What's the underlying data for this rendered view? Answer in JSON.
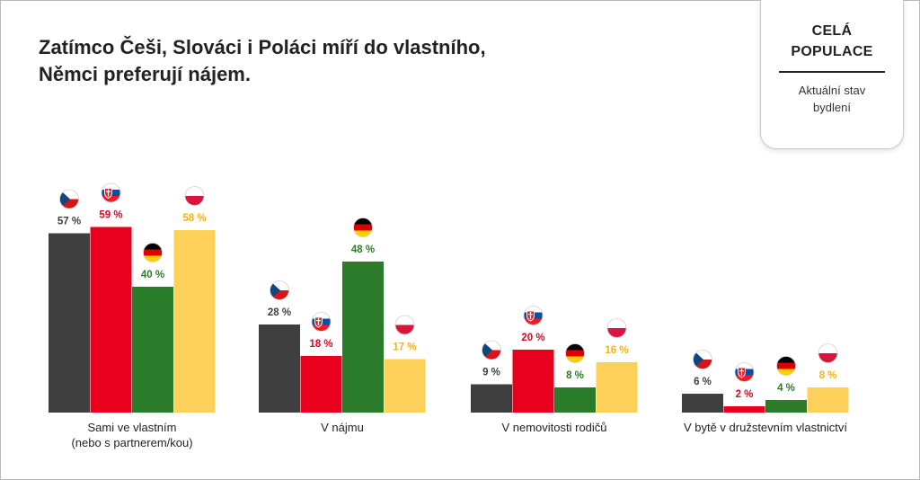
{
  "header": {
    "title_line1": "Zatímco Češi, Slováci i Poláci míří do vlastního,",
    "title_line2": "Němci preferují nájem."
  },
  "badge": {
    "title_line1": "CELÁ",
    "title_line2": "POPULACE",
    "subtitle_line1": "Aktuální stav",
    "subtitle_line2": "bydlení"
  },
  "chart_data": {
    "type": "bar",
    "title": "Zatímco Češi, Slováci i Poláci míří do vlastního, Němci preferují nájem.",
    "categories": [
      [
        "Sami ve vlastním",
        "(nebo s partnerem/kou)"
      ],
      [
        "V nájmu"
      ],
      [
        "V nemovitosti rodičů"
      ],
      [
        "V bytě v družstevním vlastnictví"
      ]
    ],
    "series": [
      {
        "flag": "czech-flag",
        "color": "#3f3f3f",
        "label_color": "#3f3f3f",
        "values": [
          57,
          28,
          9,
          6
        ],
        "labels": [
          "57 %",
          "28 %",
          "9 %",
          "6 %"
        ]
      },
      {
        "flag": "slovak-flag",
        "color": "#e8001c",
        "label_color": "#e8001c",
        "values": [
          59,
          18,
          20,
          2
        ],
        "labels": [
          "59 %",
          "18 %",
          "20 %",
          "2 %"
        ]
      },
      {
        "flag": "german-flag",
        "color": "#2a7b2a",
        "label_color": "#2a7b2a",
        "values": [
          40,
          48,
          8,
          4
        ],
        "labels": [
          "40 %",
          "48 %",
          "8 %",
          "4 %"
        ]
      },
      {
        "flag": "polish-flag",
        "color": "#fdd05a",
        "label_color": "#f2b21a",
        "values": [
          58,
          17,
          16,
          8
        ],
        "labels": [
          "58 %",
          "17 %",
          "16 %",
          "8 %"
        ]
      }
    ],
    "ylim": [
      0,
      60
    ],
    "grid": false,
    "legend": "flag icons above bars"
  }
}
